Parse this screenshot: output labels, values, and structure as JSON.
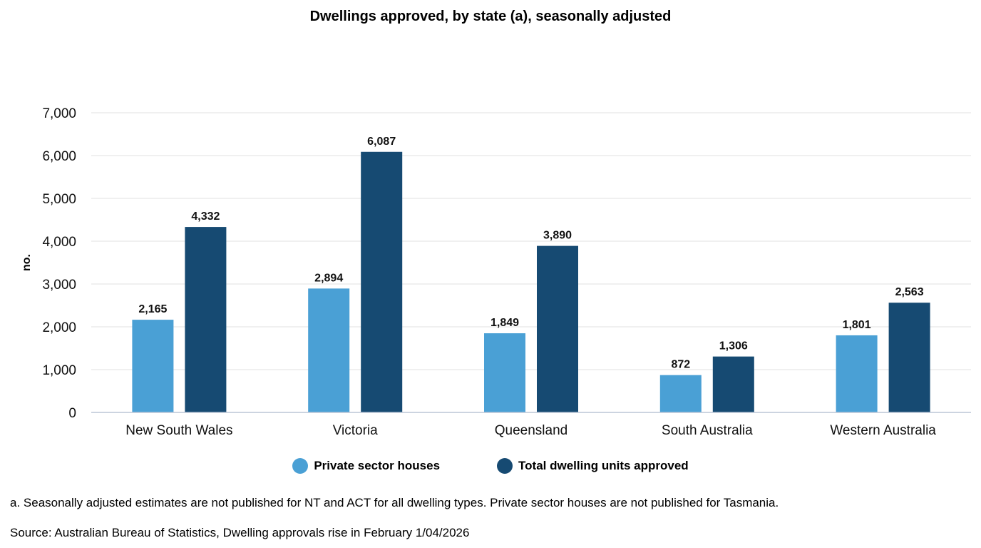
{
  "chart_data": {
    "type": "bar",
    "title": "Dwellings approved, by state (a), seasonally adjusted",
    "xlabel": "",
    "ylabel": "no.",
    "ylim": [
      0,
      7000
    ],
    "yticks": [
      0,
      1000,
      2000,
      3000,
      4000,
      5000,
      6000,
      7000
    ],
    "ytick_labels": [
      "0",
      "1,000",
      "2,000",
      "3,000",
      "4,000",
      "5,000",
      "6,000",
      "7,000"
    ],
    "grid": true,
    "legend_position": "bottom",
    "categories": [
      "New South Wales",
      "Victoria",
      "Queensland",
      "South Australia",
      "Western Australia"
    ],
    "series": [
      {
        "name": "Private sector houses",
        "color": "#4aa0d5",
        "values": [
          2165,
          2894,
          1849,
          872,
          1801
        ],
        "labels": [
          "2,165",
          "2,894",
          "1,849",
          "872",
          "1,801"
        ]
      },
      {
        "name": "Total dwelling units approved",
        "color": "#164a72",
        "values": [
          4332,
          6087,
          3890,
          1306,
          2563
        ],
        "labels": [
          "4,332",
          "6,087",
          "3,890",
          "1,306",
          "2,563"
        ]
      }
    ]
  },
  "footnotes": {
    "a": "a. Seasonally adjusted estimates are not published for NT and ACT for all dwelling types. Private sector houses are not published for Tasmania.",
    "source": "Source: Australian Bureau of Statistics, Dwelling approvals rise in February 1/04/2026"
  },
  "colors": {
    "grid": "#e2e2e2",
    "axis": "#bcc6d6"
  }
}
